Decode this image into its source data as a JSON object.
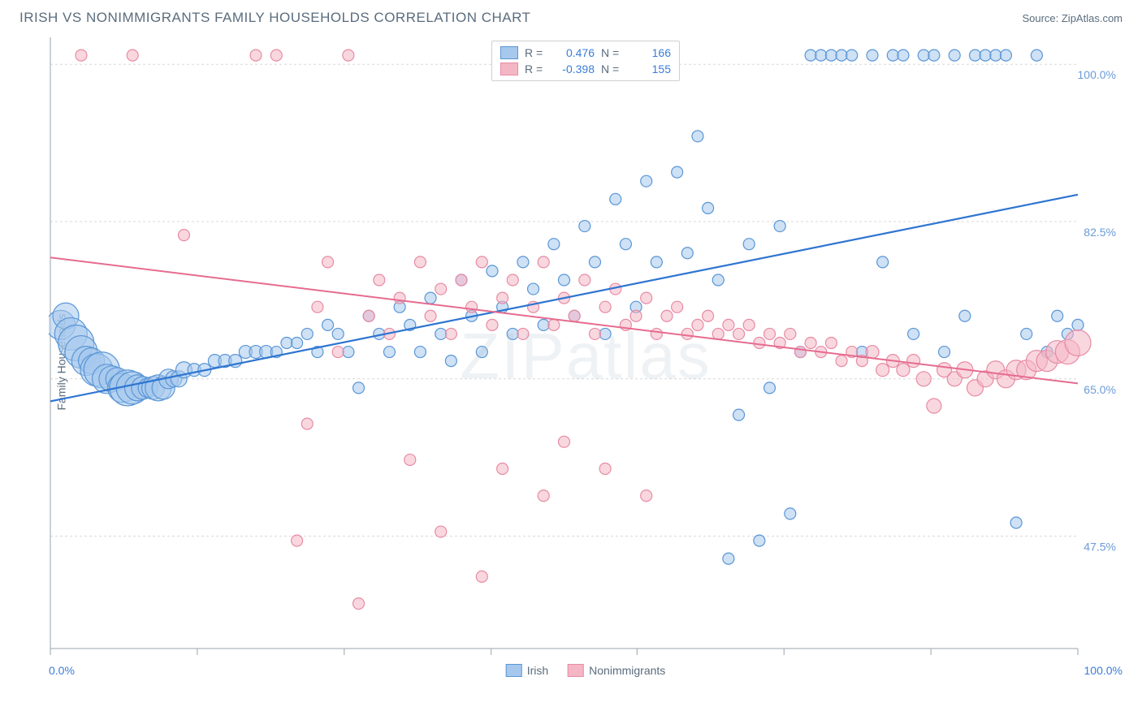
{
  "title": "IRISH VS NONIMMIGRANTS FAMILY HOUSEHOLDS CORRELATION CHART",
  "source": "Source: ZipAtlas.com",
  "watermark": "ZIPatlas",
  "ylabel": "Family Households",
  "chart": {
    "type": "scatter",
    "background_color": "#ffffff",
    "grid_color": "#d8d8d8",
    "axis_color": "#9aa4ae",
    "tick_color": "#9aa4ae",
    "ylabel_color": "#5a6c7d",
    "ytick_label_color": "#6b9bd8",
    "xtick_label_color": "#3b7dd8",
    "grid_dash": "3,3",
    "xlim": [
      0,
      100
    ],
    "ylim": [
      35,
      103
    ],
    "xtick_major": [
      0,
      14.3,
      28.6,
      42.9,
      57.1,
      71.4,
      85.7,
      100
    ],
    "xtick_labels": {
      "0": "0.0%",
      "100": "100.0%"
    },
    "ygrid": [
      47.5,
      65.0,
      82.5,
      100.0
    ],
    "ygrid_labels": [
      "47.5%",
      "65.0%",
      "82.5%",
      "100.0%"
    ],
    "series": [
      {
        "name": "Irish",
        "fill": "#a6c8ed",
        "fill_opacity": 0.55,
        "stroke": "#5a96d6",
        "stroke_width": 1.2,
        "trend_color": "#2e75d0",
        "trend_width": 2.2,
        "trend": {
          "x1": 0,
          "y1": 62.5,
          "x2": 100,
          "y2": 85.5
        },
        "R": "0.476",
        "N": "166",
        "points": [
          [
            1,
            71,
            18
          ],
          [
            1.5,
            72,
            16
          ],
          [
            2,
            70,
            20
          ],
          [
            2.5,
            69,
            22
          ],
          [
            3,
            68,
            20
          ],
          [
            3.5,
            67,
            18
          ],
          [
            4,
            67,
            16
          ],
          [
            4.5,
            66,
            20
          ],
          [
            5,
            66,
            22
          ],
          [
            5.5,
            65,
            18
          ],
          [
            6,
            65,
            16
          ],
          [
            6.5,
            65,
            14
          ],
          [
            7,
            64,
            18
          ],
          [
            7.5,
            64,
            22
          ],
          [
            8,
            64,
            20
          ],
          [
            8.5,
            64,
            16
          ],
          [
            9,
            64,
            14
          ],
          [
            9.5,
            64,
            12
          ],
          [
            10,
            64,
            14
          ],
          [
            10.5,
            64,
            16
          ],
          [
            11,
            64,
            14
          ],
          [
            11.5,
            65,
            12
          ],
          [
            12,
            65,
            10
          ],
          [
            12.5,
            65,
            10
          ],
          [
            13,
            66,
            10
          ],
          [
            14,
            66,
            8
          ],
          [
            15,
            66,
            8
          ],
          [
            16,
            67,
            8
          ],
          [
            17,
            67,
            8
          ],
          [
            18,
            67,
            8
          ],
          [
            19,
            68,
            8
          ],
          [
            20,
            68,
            8
          ],
          [
            21,
            68,
            8
          ],
          [
            22,
            68,
            7
          ],
          [
            23,
            69,
            7
          ],
          [
            24,
            69,
            7
          ],
          [
            25,
            70,
            7
          ],
          [
            26,
            68,
            7
          ],
          [
            27,
            71,
            7
          ],
          [
            28,
            70,
            7
          ],
          [
            29,
            68,
            7
          ],
          [
            30,
            64,
            7
          ],
          [
            31,
            72,
            7
          ],
          [
            32,
            70,
            7
          ],
          [
            33,
            68,
            7
          ],
          [
            34,
            73,
            7
          ],
          [
            35,
            71,
            7
          ],
          [
            36,
            68,
            7
          ],
          [
            37,
            74,
            7
          ],
          [
            38,
            70,
            7
          ],
          [
            39,
            67,
            7
          ],
          [
            40,
            76,
            7
          ],
          [
            41,
            72,
            7
          ],
          [
            42,
            68,
            7
          ],
          [
            43,
            77,
            7
          ],
          [
            44,
            73,
            7
          ],
          [
            45,
            70,
            7
          ],
          [
            46,
            78,
            7
          ],
          [
            47,
            75,
            7
          ],
          [
            48,
            71,
            7
          ],
          [
            49,
            80,
            7
          ],
          [
            50,
            76,
            7
          ],
          [
            51,
            72,
            7
          ],
          [
            52,
            82,
            7
          ],
          [
            53,
            78,
            7
          ],
          [
            54,
            70,
            7
          ],
          [
            55,
            85,
            7
          ],
          [
            56,
            80,
            7
          ],
          [
            57,
            73,
            7
          ],
          [
            58,
            87,
            7
          ],
          [
            59,
            78,
            7
          ],
          [
            60,
            101,
            7
          ],
          [
            61,
            88,
            7
          ],
          [
            62,
            79,
            7
          ],
          [
            63,
            92,
            7
          ],
          [
            64,
            84,
            7
          ],
          [
            65,
            76,
            7
          ],
          [
            66,
            45,
            7
          ],
          [
            67,
            61,
            7
          ],
          [
            68,
            80,
            7
          ],
          [
            69,
            47,
            7
          ],
          [
            70,
            64,
            7
          ],
          [
            71,
            82,
            7
          ],
          [
            72,
            50,
            7
          ],
          [
            73,
            68,
            7
          ],
          [
            74,
            101,
            7
          ],
          [
            75,
            101,
            7
          ],
          [
            76,
            101,
            7
          ],
          [
            77,
            101,
            7
          ],
          [
            78,
            101,
            7
          ],
          [
            79,
            68,
            7
          ],
          [
            80,
            101,
            7
          ],
          [
            81,
            78,
            7
          ],
          [
            82,
            101,
            7
          ],
          [
            83,
            101,
            7
          ],
          [
            84,
            70,
            7
          ],
          [
            85,
            101,
            7
          ],
          [
            86,
            101,
            7
          ],
          [
            87,
            68,
            7
          ],
          [
            88,
            101,
            7
          ],
          [
            89,
            72,
            7
          ],
          [
            90,
            101,
            7
          ],
          [
            91,
            101,
            7
          ],
          [
            92,
            101,
            7
          ],
          [
            93,
            101,
            7
          ],
          [
            94,
            49,
            7
          ],
          [
            95,
            70,
            7
          ],
          [
            96,
            101,
            7
          ],
          [
            97,
            68,
            7
          ],
          [
            98,
            72,
            7
          ],
          [
            99,
            70,
            7
          ],
          [
            100,
            71,
            7
          ]
        ]
      },
      {
        "name": "Nonimmigrants",
        "fill": "#f4b6c4",
        "fill_opacity": 0.55,
        "stroke": "#e88ba4",
        "stroke_width": 1.2,
        "trend_color": "#e66b8f",
        "trend_width": 2.0,
        "trend": {
          "x1": 0,
          "y1": 78.5,
          "x2": 100,
          "y2": 64.5
        },
        "R": "-0.398",
        "N": "155",
        "points": [
          [
            3,
            101,
            7
          ],
          [
            8,
            101,
            7
          ],
          [
            13,
            81,
            7
          ],
          [
            20,
            101,
            7
          ],
          [
            22,
            101,
            7
          ],
          [
            24,
            47,
            7
          ],
          [
            25,
            60,
            7
          ],
          [
            26,
            73,
            7
          ],
          [
            27,
            78,
            7
          ],
          [
            28,
            68,
            7
          ],
          [
            29,
            101,
            7
          ],
          [
            30,
            40,
            7
          ],
          [
            31,
            72,
            7
          ],
          [
            32,
            76,
            7
          ],
          [
            33,
            70,
            7
          ],
          [
            34,
            74,
            7
          ],
          [
            35,
            56,
            7
          ],
          [
            36,
            78,
            7
          ],
          [
            37,
            72,
            7
          ],
          [
            38,
            75,
            7
          ],
          [
            39,
            70,
            7
          ],
          [
            40,
            76,
            7
          ],
          [
            41,
            73,
            7
          ],
          [
            42,
            78,
            7
          ],
          [
            43,
            71,
            7
          ],
          [
            44,
            74,
            7
          ],
          [
            45,
            76,
            7
          ],
          [
            46,
            70,
            7
          ],
          [
            47,
            73,
            7
          ],
          [
            48,
            78,
            7
          ],
          [
            49,
            71,
            7
          ],
          [
            50,
            74,
            7
          ],
          [
            51,
            72,
            7
          ],
          [
            52,
            76,
            7
          ],
          [
            53,
            70,
            7
          ],
          [
            54,
            73,
            7
          ],
          [
            55,
            75,
            7
          ],
          [
            56,
            71,
            7
          ],
          [
            57,
            72,
            7
          ],
          [
            58,
            74,
            7
          ],
          [
            59,
            70,
            7
          ],
          [
            60,
            72,
            7
          ],
          [
            61,
            73,
            7
          ],
          [
            62,
            70,
            7
          ],
          [
            63,
            71,
            7
          ],
          [
            64,
            72,
            7
          ],
          [
            65,
            70,
            7
          ],
          [
            66,
            71,
            7
          ],
          [
            67,
            70,
            7
          ],
          [
            68,
            71,
            7
          ],
          [
            69,
            69,
            7
          ],
          [
            70,
            70,
            7
          ],
          [
            71,
            69,
            7
          ],
          [
            72,
            70,
            7
          ],
          [
            73,
            68,
            7
          ],
          [
            74,
            69,
            7
          ],
          [
            75,
            68,
            7
          ],
          [
            76,
            69,
            7
          ],
          [
            77,
            67,
            7
          ],
          [
            78,
            68,
            7
          ],
          [
            79,
            67,
            7
          ],
          [
            80,
            68,
            8
          ],
          [
            81,
            66,
            8
          ],
          [
            82,
            67,
            8
          ],
          [
            83,
            66,
            8
          ],
          [
            84,
            67,
            8
          ],
          [
            85,
            65,
            9
          ],
          [
            86,
            62,
            9
          ],
          [
            87,
            66,
            9
          ],
          [
            88,
            65,
            9
          ],
          [
            89,
            66,
            10
          ],
          [
            90,
            64,
            10
          ],
          [
            91,
            65,
            10
          ],
          [
            92,
            66,
            11
          ],
          [
            93,
            65,
            11
          ],
          [
            94,
            66,
            12
          ],
          [
            95,
            66,
            12
          ],
          [
            96,
            67,
            13
          ],
          [
            97,
            67,
            13
          ],
          [
            98,
            68,
            14
          ],
          [
            99,
            68,
            15
          ],
          [
            100,
            69,
            16
          ],
          [
            44,
            55,
            7
          ],
          [
            48,
            52,
            7
          ],
          [
            38,
            48,
            7
          ],
          [
            42,
            43,
            7
          ],
          [
            50,
            58,
            7
          ],
          [
            54,
            55,
            7
          ],
          [
            58,
            52,
            7
          ]
        ]
      }
    ]
  },
  "legend_top": {
    "border_color": "#d0d0d0",
    "label_color": "#5a6c7d",
    "value_color": "#3b7dd8",
    "items": [
      {
        "swatch_fill": "#a6c8ed",
        "swatch_stroke": "#5a96d6",
        "R_label": "R =",
        "R_value": "0.476",
        "N_label": "N =",
        "N_value": "166"
      },
      {
        "swatch_fill": "#f4b6c4",
        "swatch_stroke": "#e88ba4",
        "R_label": "R =",
        "R_value": "-0.398",
        "N_label": "N =",
        "N_value": "155"
      }
    ]
  },
  "legend_bottom": {
    "items": [
      {
        "swatch_fill": "#a6c8ed",
        "swatch_stroke": "#5a96d6",
        "label": "Irish"
      },
      {
        "swatch_fill": "#f4b6c4",
        "swatch_stroke": "#e88ba4",
        "label": "Nonimmigrants"
      }
    ]
  }
}
